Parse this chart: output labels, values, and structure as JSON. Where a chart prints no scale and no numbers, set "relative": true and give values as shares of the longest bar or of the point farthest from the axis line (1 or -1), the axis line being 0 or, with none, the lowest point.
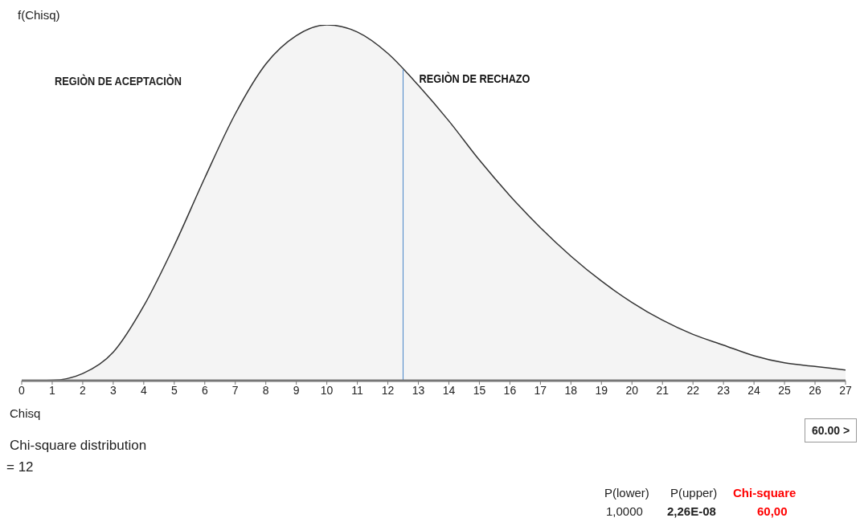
{
  "chart_data": {
    "type": "area",
    "relative": true,
    "ylabel": "f(Chisq)",
    "xlabel": "Chisq",
    "x": [
      0,
      1,
      2,
      3,
      4,
      5,
      6,
      7,
      8,
      9,
      10,
      11,
      12,
      13,
      14,
      15,
      16,
      17,
      18,
      19,
      20,
      21,
      22,
      23,
      24,
      25,
      26,
      27
    ],
    "series": [
      {
        "color": "#f4f4f4",
        "values": [
          0,
          0.001,
          0.02,
          0.08,
          0.21,
          0.38,
          0.57,
          0.75,
          0.89,
          0.97,
          1,
          0.98,
          0.92,
          0.83,
          0.73,
          0.62,
          0.52,
          0.43,
          0.35,
          0.28,
          0.22,
          0.17,
          0.13,
          0.1,
          0.07,
          0.05,
          0.04,
          0.03
        ]
      }
    ],
    "xlim": [
      0,
      27
    ],
    "xticks": [
      0,
      1,
      2,
      3,
      4,
      5,
      6,
      7,
      8,
      9,
      10,
      11,
      12,
      13,
      14,
      15,
      16,
      17,
      18,
      19,
      20,
      21,
      22,
      23,
      24,
      25,
      26,
      27
    ],
    "ref_lines": [
      {
        "axis": "x",
        "value": 12.5,
        "label": "REGIÒN DE RECHAZO",
        "color": "#4a86c8"
      }
    ],
    "annotations": [
      "REGIÒN DE ACEPTACIÒN",
      "60.00 >",
      "Chi-square distribution",
      "= 12",
      "P(lower)",
      "P(upper)",
      "Chi-square",
      "1,0000",
      "2,26E-08",
      "60,00"
    ],
    "grid": false,
    "legend": false
  }
}
